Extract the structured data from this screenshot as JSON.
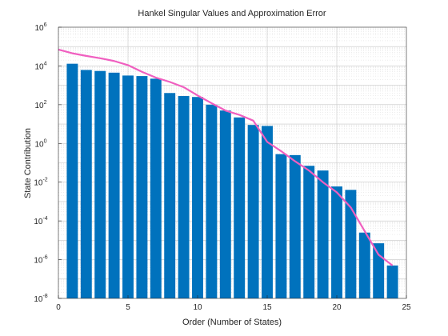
{
  "chart_data": {
    "type": "bar",
    "title": "Hankel Singular Values and Approximation Error",
    "xlabel": "Order (Number of States)",
    "ylabel": "State Contribution",
    "xlim": [
      0,
      25
    ],
    "ylim_log10": [
      -8,
      6
    ],
    "y_scale": "log",
    "grid": true,
    "x_ticks": [
      "0",
      "5",
      "10",
      "15",
      "20",
      "25"
    ],
    "y_ticks": [
      {
        "base": "10",
        "exp": "-8"
      },
      {
        "base": "10",
        "exp": "-6"
      },
      {
        "base": "10",
        "exp": "-4"
      },
      {
        "base": "10",
        "exp": "-2"
      },
      {
        "base": "10",
        "exp": "0"
      },
      {
        "base": "10",
        "exp": "2"
      },
      {
        "base": "10",
        "exp": "4"
      },
      {
        "base": "10",
        "exp": "6"
      }
    ],
    "series": [
      {
        "kind": "bar",
        "color": "#0072BD",
        "x": [
          1,
          2,
          3,
          4,
          5,
          6,
          7,
          8,
          9,
          10,
          11,
          12,
          13,
          14,
          15,
          16,
          17,
          18,
          19,
          20,
          21,
          22,
          23,
          24
        ],
        "values": [
          13000,
          6200,
          5500,
          4500,
          3200,
          3000,
          2200,
          400,
          280,
          250,
          100,
          50,
          22,
          9,
          8,
          0.28,
          0.25,
          0.07,
          0.04,
          0.006,
          0.004,
          2.5e-05,
          7e-06,
          5e-07
        ]
      },
      {
        "kind": "line",
        "color": "#F05FC0",
        "x": [
          0,
          1,
          2,
          3,
          4,
          5,
          6,
          7,
          8,
          9,
          10,
          11,
          12,
          13,
          14,
          15,
          16,
          17,
          18,
          19,
          20,
          21,
          22,
          23,
          24
        ],
        "values": [
          70000,
          45000,
          33000,
          25000,
          18000,
          11000,
          5000,
          2500,
          1500,
          800,
          300,
          120,
          50,
          30,
          15,
          1.2,
          0.4,
          0.12,
          0.04,
          0.01,
          0.003,
          0.0005,
          3e-05,
          1.8e-06,
          5e-07
        ]
      }
    ]
  }
}
